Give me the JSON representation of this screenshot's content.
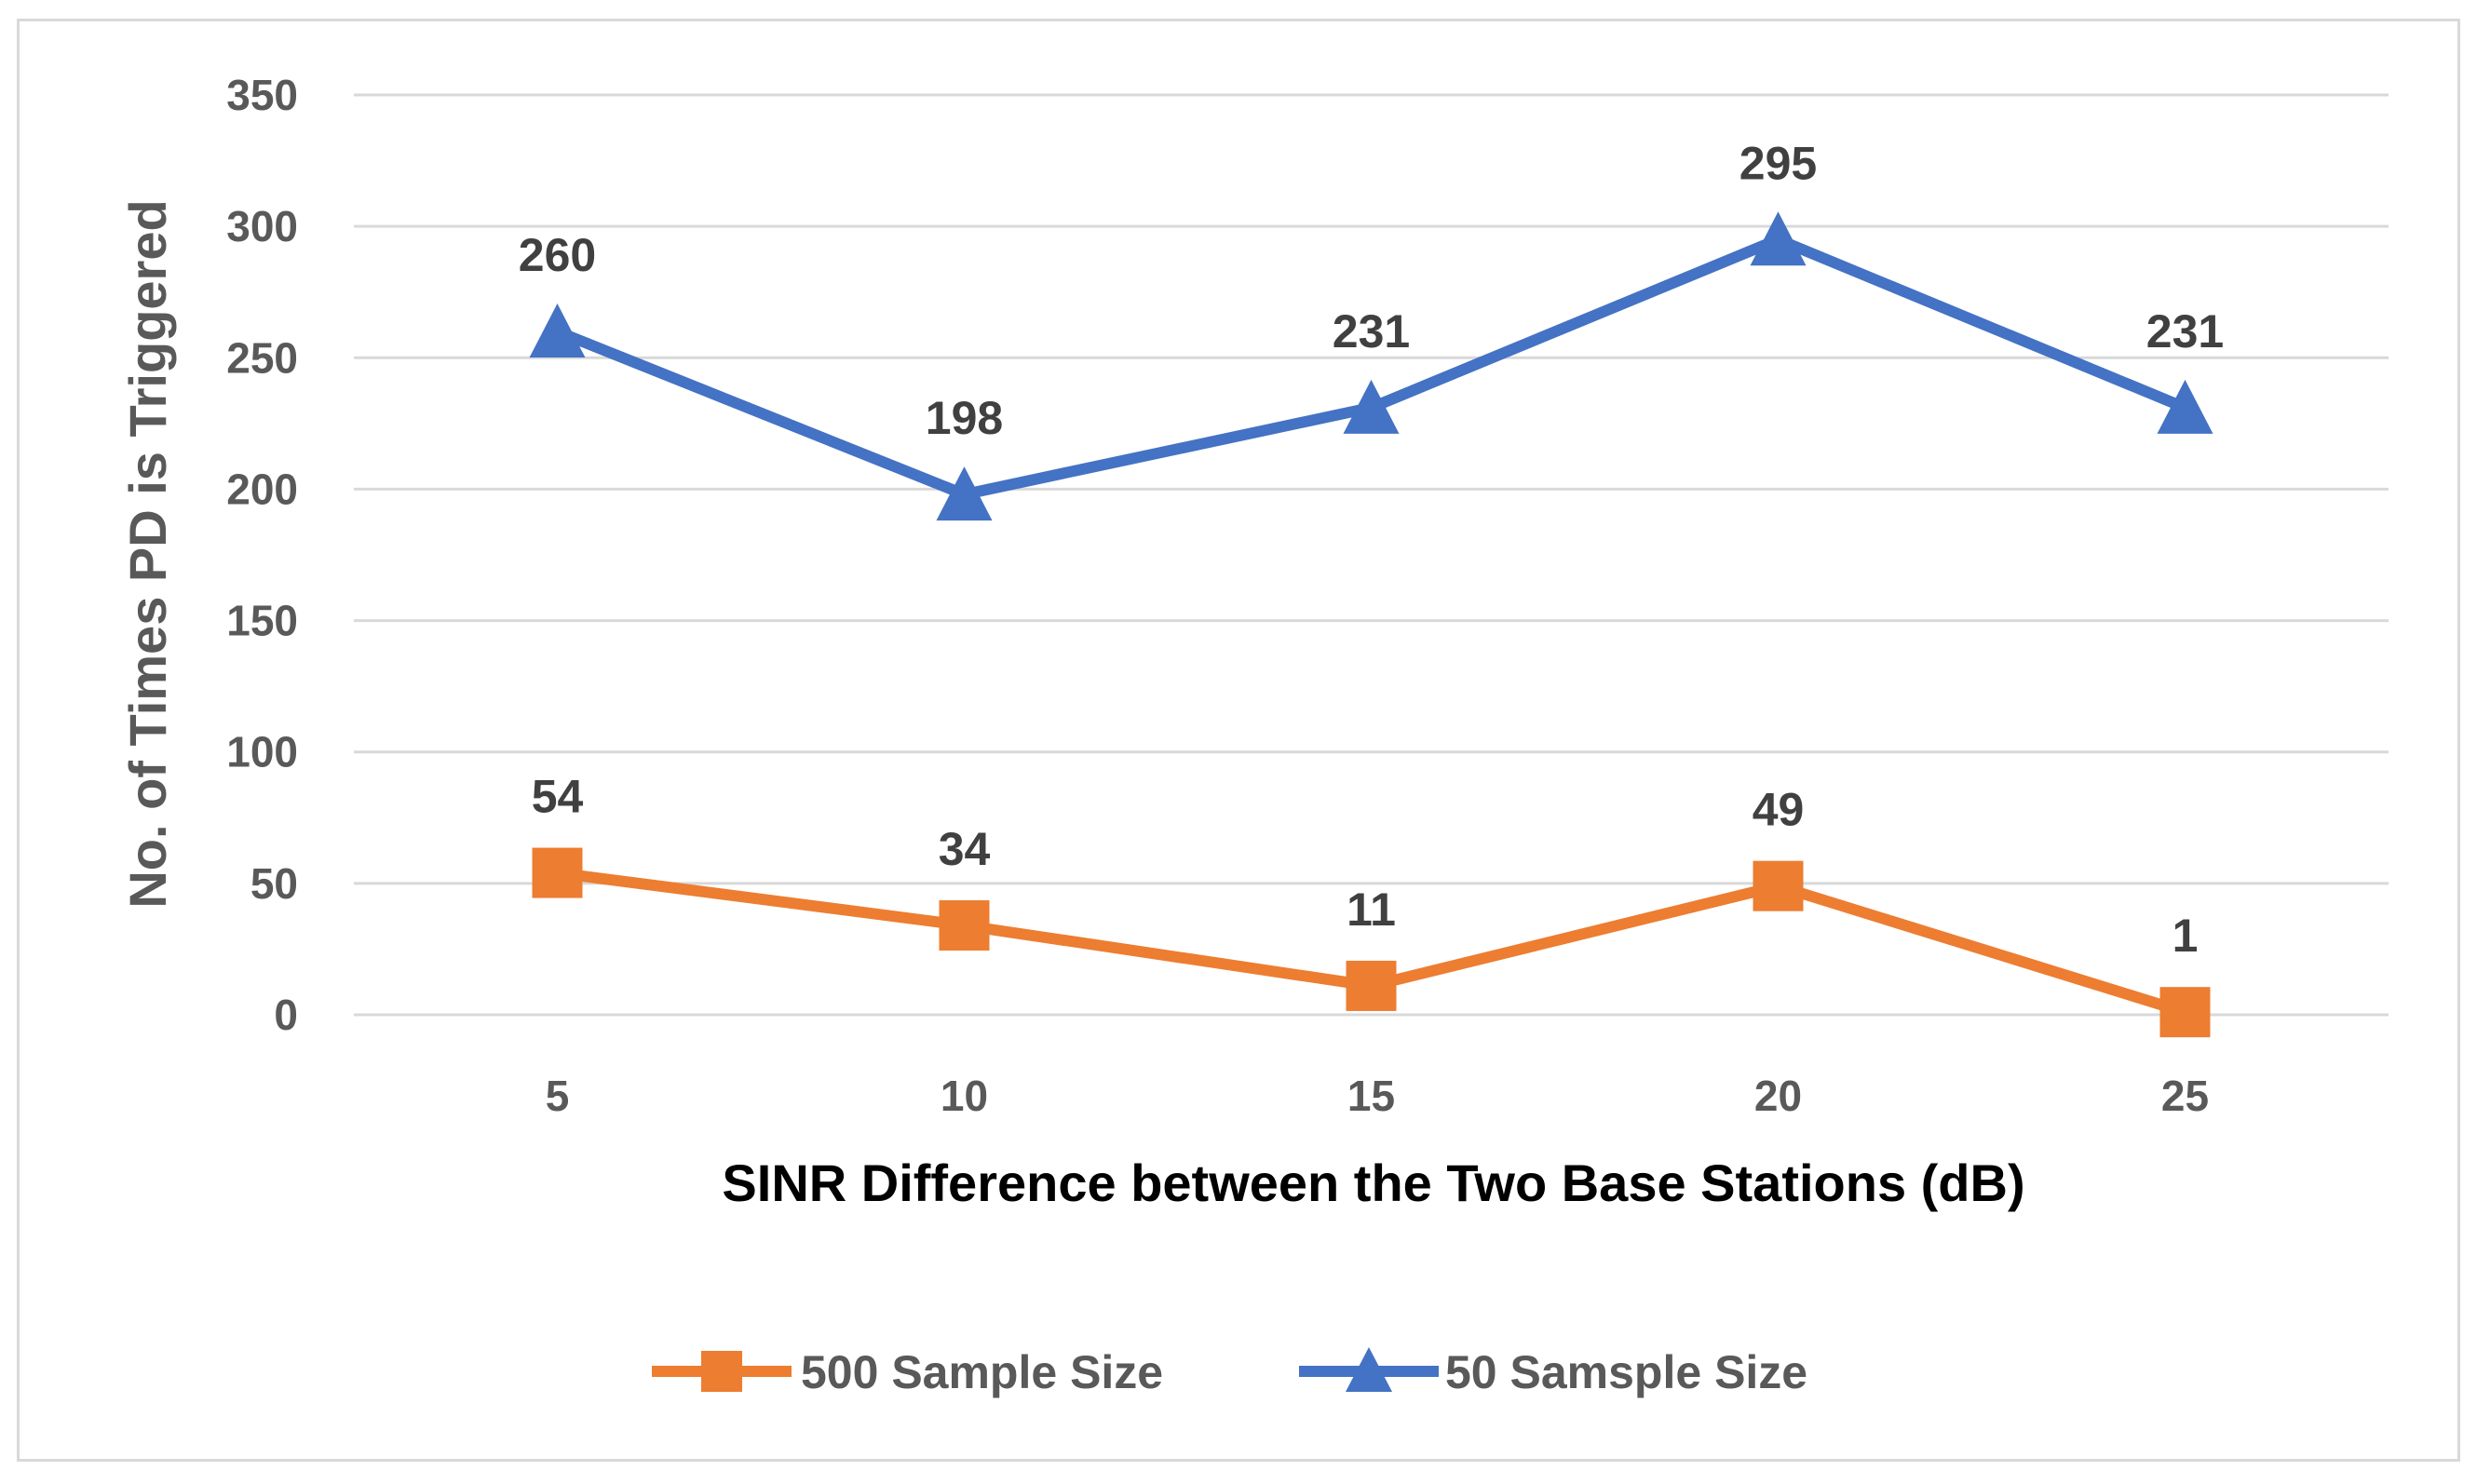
{
  "chart_data": {
    "type": "line",
    "title": "",
    "xlabel": "SINR Difference between the Two Base Stations (dB)",
    "ylabel": "No. of Times PD is Triggered",
    "categories": [
      "5",
      "10",
      "15",
      "20",
      "25"
    ],
    "ylim": [
      0,
      350
    ],
    "yticks": [
      "0",
      "50",
      "100",
      "150",
      "200",
      "250",
      "300",
      "350"
    ],
    "grid": true,
    "legend_position": "bottom",
    "series": [
      {
        "name": "500 Sample Size",
        "marker": "square",
        "color": "#ED7D31",
        "values": [
          54,
          34,
          11,
          49,
          1
        ],
        "labels": [
          "54",
          "34",
          "11",
          "49",
          "1"
        ]
      },
      {
        "name": "50 Samsple Size",
        "marker": "triangle",
        "color": "#4472C4",
        "values": [
          260,
          198,
          231,
          295,
          231
        ],
        "labels": [
          "260",
          "198",
          "231",
          "295",
          "231"
        ]
      }
    ],
    "colors": {
      "grid": "#d9d9d9",
      "tick_text": "#595959",
      "ylabel_text": "#595959",
      "xlabel_text": "#000000"
    }
  }
}
